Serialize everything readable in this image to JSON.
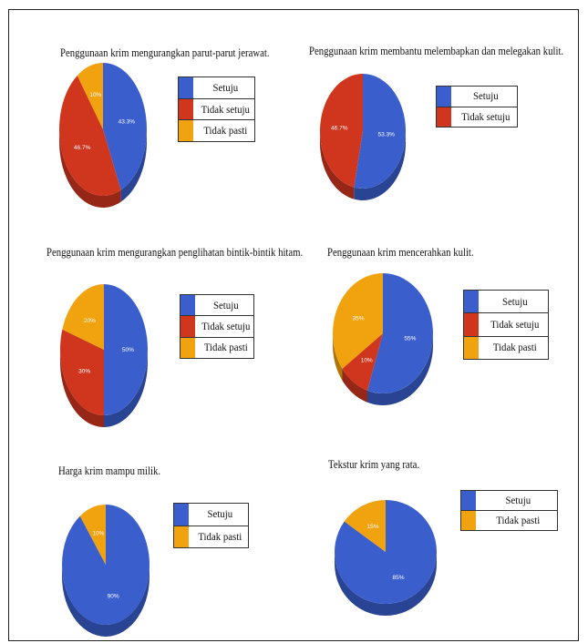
{
  "colors": {
    "setuju": "#3a5fcd",
    "tidak_setuju": "#d0351e",
    "tidak_pasti": "#f1a20f"
  },
  "chart_data": [
    {
      "type": "pie",
      "title": "Penggunaan krim mengurangkan parut-parut jerawat.",
      "labels": [
        "Setuju",
        "Tidak setuju",
        "Tidak pasti"
      ],
      "values": [
        43.3,
        46.7,
        10
      ],
      "value_labels": [
        "43.3%",
        "46.7%",
        "10%"
      ],
      "legend_position": "right"
    },
    {
      "type": "pie",
      "title": "Penggunaan krim membantu melembapkan dan melegakan kulit.",
      "labels": [
        "Setuju",
        "Tidak setuju"
      ],
      "values": [
        53.3,
        46.7
      ],
      "value_labels": [
        "53.3%",
        "46.7%"
      ],
      "legend_position": "right"
    },
    {
      "type": "pie",
      "title": "Penggunaan krim mengurangkan penglihatan bintik-bintik hitam.",
      "labels": [
        "Setuju",
        "Tidak setuju",
        "Tidak pasti"
      ],
      "values": [
        50,
        30,
        20
      ],
      "value_labels": [
        "50%",
        "30%",
        "20%"
      ],
      "legend_position": "right"
    },
    {
      "type": "pie",
      "title": "Penggunaan krim mencerahkan kulit.",
      "labels": [
        "Setuju",
        "Tidak setuju",
        "Tidak pasti"
      ],
      "values": [
        55,
        10,
        35
      ],
      "value_labels": [
        "55%",
        "10%",
        "35%"
      ],
      "legend_position": "right"
    },
    {
      "type": "pie",
      "title": "Harga krim mampu milik.",
      "labels": [
        "Setuju",
        "Tidak pasti"
      ],
      "values": [
        90,
        10
      ],
      "value_labels": [
        "90%",
        "10%"
      ],
      "legend_position": "right"
    },
    {
      "type": "pie",
      "title": "Tekstur krim yang rata.",
      "labels": [
        "Setuju",
        "Tidak pasti"
      ],
      "values": [
        85,
        15
      ],
      "value_labels": [
        "85%",
        "15%"
      ],
      "legend_position": "right"
    }
  ]
}
